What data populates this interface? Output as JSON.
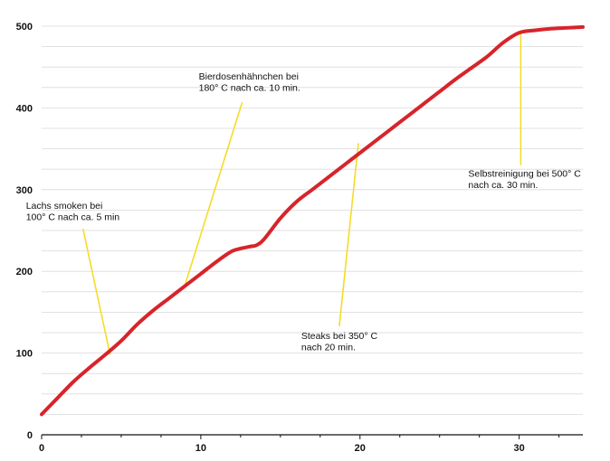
{
  "chart_data": {
    "type": "line",
    "title": "",
    "xlabel": "",
    "ylabel": "",
    "xlim": [
      0,
      34
    ],
    "ylim": [
      0,
      500
    ],
    "x_ticks": [
      0,
      10,
      20,
      30
    ],
    "y_ticks": [
      0,
      100,
      200,
      300,
      400,
      500
    ],
    "grid": true,
    "colors": {
      "series": "#d7242b",
      "annotation_line": "#f5dc28",
      "grid": "#d9d9d9",
      "axis": "#111111"
    },
    "series": [
      {
        "x": [
          0,
          1,
          2,
          3,
          4,
          5,
          6,
          7,
          8,
          9,
          10,
          11,
          12,
          13,
          13.5,
          14,
          15,
          16,
          17,
          18,
          19,
          20,
          21,
          22,
          23,
          24,
          25,
          26,
          27,
          28,
          29,
          30,
          31,
          32,
          33,
          34
        ],
        "values": [
          25,
          45,
          65,
          82,
          98,
          115,
          135,
          152,
          167,
          182,
          197,
          212,
          225,
          230,
          232,
          240,
          265,
          285,
          300,
          315,
          330,
          345,
          360,
          375,
          390,
          405,
          420,
          435,
          449,
          463,
          480,
          492,
          495,
          497,
          498,
          499
        ]
      }
    ],
    "annotations": [
      {
        "lines": [
          "Lachs smoken bei",
          "100° C nach ca. 5 min"
        ],
        "point": [
          4.3,
          98
        ],
        "text_anchor": [
          2.6,
          252
        ]
      },
      {
        "lines": [
          "Bierdosenhähnchen bei",
          "180° C nach ca. 10 min."
        ],
        "point": [
          9.0,
          183
        ],
        "text_anchor": [
          12.6,
          407
        ]
      },
      {
        "lines": [
          "Steaks bei 350° C",
          "nach 20 min."
        ],
        "point": [
          19.9,
          357
        ],
        "text_anchor": [
          18.7,
          133
        ]
      },
      {
        "lines": [
          "Selbstreinigung bei 500° C",
          "nach ca. 30 min."
        ],
        "point": [
          30.1,
          492
        ],
        "text_anchor": [
          30.1,
          330
        ]
      }
    ]
  }
}
